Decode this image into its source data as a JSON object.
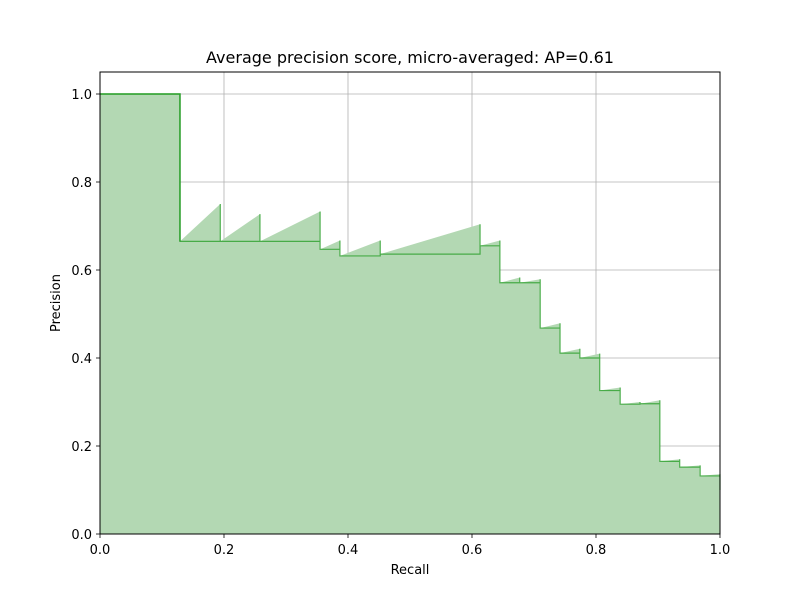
{
  "chart_data": {
    "type": "area",
    "title": "Average precision score, micro-averaged: AP=0.61",
    "xlabel": "Recall",
    "ylabel": "Precision",
    "xlim": [
      0.0,
      1.0
    ],
    "ylim": [
      0.0,
      1.05
    ],
    "grid": true,
    "xticks": [
      "0.0",
      "0.2",
      "0.4",
      "0.6",
      "0.8",
      "1.0"
    ],
    "yticks": [
      "0.0",
      "0.2",
      "0.4",
      "0.6",
      "0.8",
      "1.0"
    ],
    "series": [
      {
        "color": "#2ca02c",
        "fill_color": "#b3d8b3",
        "points": [
          [
            0.0,
            1.0
          ],
          [
            0.129,
            1.0
          ],
          [
            0.129,
            0.665
          ],
          [
            0.194,
            0.75
          ],
          [
            0.194,
            0.665
          ],
          [
            0.258,
            0.727
          ],
          [
            0.258,
            0.665
          ],
          [
            0.355,
            0.733
          ],
          [
            0.355,
            0.647
          ],
          [
            0.387,
            0.667
          ],
          [
            0.387,
            0.632
          ],
          [
            0.452,
            0.667
          ],
          [
            0.452,
            0.636
          ],
          [
            0.613,
            0.704
          ],
          [
            0.613,
            0.655
          ],
          [
            0.645,
            0.667
          ],
          [
            0.645,
            0.571
          ],
          [
            0.677,
            0.583
          ],
          [
            0.677,
            0.571
          ],
          [
            0.71,
            0.579
          ],
          [
            0.71,
            0.468
          ],
          [
            0.742,
            0.479
          ],
          [
            0.742,
            0.411
          ],
          [
            0.774,
            0.421
          ],
          [
            0.774,
            0.4
          ],
          [
            0.806,
            0.41
          ],
          [
            0.806,
            0.326
          ],
          [
            0.839,
            0.333
          ],
          [
            0.839,
            0.295
          ],
          [
            0.871,
            0.3
          ],
          [
            0.871,
            0.296
          ],
          [
            0.903,
            0.304
          ],
          [
            0.903,
            0.165
          ],
          [
            0.935,
            0.17
          ],
          [
            0.935,
            0.152
          ],
          [
            0.968,
            0.156
          ],
          [
            0.968,
            0.132
          ],
          [
            1.0,
            0.136
          ],
          [
            1.0,
            0.1
          ]
        ]
      }
    ]
  }
}
